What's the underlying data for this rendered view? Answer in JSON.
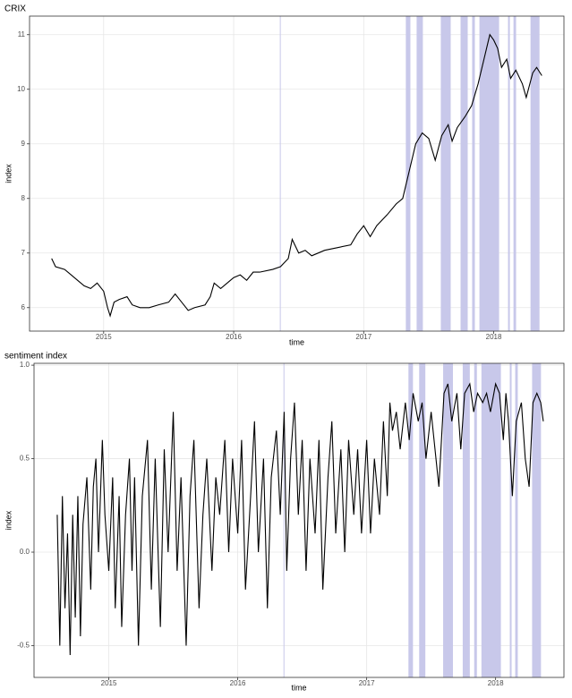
{
  "chart_data": [
    {
      "type": "line",
      "title": "CRIX",
      "x_label": "time",
      "y_label": "index",
      "xlim": [
        2014.43,
        2018.54
      ],
      "xticks": [
        2015,
        2016,
        2017,
        2018
      ],
      "ylim": [
        5.57,
        11.34
      ],
      "yticks": [
        6,
        7,
        8,
        9,
        10,
        11
      ],
      "grid": true,
      "highlight_color": "#c8c8ea",
      "highlight_periods": [
        [
          2016.355,
          2016.362
        ],
        [
          2017.324,
          2017.359
        ],
        [
          2017.407,
          2017.455
        ],
        [
          2017.593,
          2017.669
        ],
        [
          2017.745,
          2017.8
        ],
        [
          2017.834,
          2017.855
        ],
        [
          2017.89,
          2018.041
        ],
        [
          2018.11,
          2018.124
        ],
        [
          2018.152,
          2018.172
        ],
        [
          2018.283,
          2018.352
        ]
      ],
      "series": [
        {
          "color": "#000000",
          "x": [
            2014.6,
            2014.63,
            2014.7,
            2014.75,
            2014.8,
            2014.85,
            2014.9,
            2014.95,
            2015.0,
            2015.03,
            2015.05,
            2015.08,
            2015.12,
            2015.18,
            2015.22,
            2015.28,
            2015.35,
            2015.42,
            2015.5,
            2015.55,
            2015.6,
            2015.65,
            2015.7,
            2015.78,
            2015.82,
            2015.85,
            2015.9,
            2015.95,
            2016.0,
            2016.05,
            2016.1,
            2016.15,
            2016.2,
            2016.3,
            2016.36,
            2016.42,
            2016.45,
            2016.5,
            2016.55,
            2016.6,
            2016.7,
            2016.8,
            2016.9,
            2016.95,
            2017.0,
            2017.05,
            2017.1,
            2017.18,
            2017.25,
            2017.3,
            2017.35,
            2017.4,
            2017.45,
            2017.5,
            2017.55,
            2017.6,
            2017.65,
            2017.68,
            2017.72,
            2017.78,
            2017.83,
            2017.88,
            2017.93,
            2017.97,
            2018.0,
            2018.03,
            2018.06,
            2018.1,
            2018.13,
            2018.17,
            2018.22,
            2018.25,
            2018.3,
            2018.33,
            2018.37
          ],
          "values": [
            6.9,
            6.75,
            6.7,
            6.6,
            6.5,
            6.4,
            6.35,
            6.45,
            6.3,
            6.0,
            5.85,
            6.1,
            6.15,
            6.2,
            6.05,
            6.0,
            6.0,
            6.05,
            6.1,
            6.25,
            6.1,
            5.95,
            6.0,
            6.05,
            6.2,
            6.45,
            6.35,
            6.45,
            6.55,
            6.6,
            6.5,
            6.65,
            6.65,
            6.7,
            6.75,
            6.9,
            7.25,
            7.0,
            7.05,
            6.95,
            7.05,
            7.1,
            7.15,
            7.35,
            7.5,
            7.3,
            7.5,
            7.7,
            7.9,
            8.0,
            8.5,
            9.0,
            9.2,
            9.1,
            8.7,
            9.15,
            9.35,
            9.05,
            9.3,
            9.5,
            9.7,
            10.1,
            10.6,
            11.0,
            10.9,
            10.75,
            10.4,
            10.55,
            10.2,
            10.35,
            10.1,
            9.85,
            10.3,
            10.4,
            10.25
          ]
        }
      ]
    },
    {
      "type": "line",
      "title": "sentiment index",
      "x_label": "time",
      "y_label": "index",
      "xlim": [
        2014.42,
        2018.53
      ],
      "xticks": [
        2015,
        2016,
        2017,
        2018
      ],
      "ylim": [
        -0.67,
        1.01
      ],
      "yticks": [
        -0.5,
        {
          "value": 0,
          "label": "0.0"
        },
        0.5,
        {
          "value": 1,
          "label": "1.0"
        }
      ],
      "grid": true,
      "highlight_color": "#c8c8ea",
      "highlight_periods": [
        [
          2016.355,
          2016.362
        ],
        [
          2017.324,
          2017.359
        ],
        [
          2017.407,
          2017.455
        ],
        [
          2017.593,
          2017.669
        ],
        [
          2017.745,
          2017.8
        ],
        [
          2017.834,
          2017.855
        ],
        [
          2017.89,
          2018.041
        ],
        [
          2018.11,
          2018.124
        ],
        [
          2018.152,
          2018.172
        ],
        [
          2018.283,
          2018.352
        ]
      ],
      "series": [
        {
          "color": "#000000",
          "x": [
            2014.6,
            2014.62,
            2014.64,
            2014.66,
            2014.68,
            2014.7,
            2014.72,
            2014.74,
            2014.76,
            2014.78,
            2014.8,
            2014.83,
            2014.86,
            2014.88,
            2014.9,
            2014.92,
            2014.95,
            2014.97,
            2015.0,
            2015.03,
            2015.05,
            2015.08,
            2015.1,
            2015.13,
            2015.16,
            2015.18,
            2015.2,
            2015.23,
            2015.26,
            2015.3,
            2015.33,
            2015.36,
            2015.4,
            2015.43,
            2015.46,
            2015.5,
            2015.53,
            2015.56,
            2015.6,
            2015.63,
            2015.66,
            2015.7,
            2015.73,
            2015.76,
            2015.8,
            2015.83,
            2015.86,
            2015.9,
            2015.93,
            2015.96,
            2016.0,
            2016.03,
            2016.06,
            2016.1,
            2016.13,
            2016.16,
            2016.2,
            2016.23,
            2016.26,
            2016.3,
            2016.33,
            2016.36,
            2016.38,
            2016.41,
            2016.44,
            2016.47,
            2016.5,
            2016.53,
            2016.56,
            2016.6,
            2016.63,
            2016.66,
            2016.7,
            2016.73,
            2016.76,
            2016.8,
            2016.83,
            2016.86,
            2016.9,
            2016.93,
            2016.96,
            2017.0,
            2017.03,
            2017.06,
            2017.1,
            2017.13,
            2017.16,
            2017.18,
            2017.2,
            2017.23,
            2017.26,
            2017.3,
            2017.33,
            2017.36,
            2017.4,
            2017.43,
            2017.46,
            2017.5,
            2017.53,
            2017.56,
            2017.58,
            2017.6,
            2017.63,
            2017.66,
            2017.7,
            2017.73,
            2017.76,
            2017.8,
            2017.83,
            2017.86,
            2017.9,
            2017.93,
            2017.96,
            2018.0,
            2018.03,
            2018.06,
            2018.08,
            2018.1,
            2018.13,
            2018.16,
            2018.2,
            2018.23,
            2018.26,
            2018.29,
            2018.32,
            2018.35,
            2018.37
          ],
          "values": [
            0.2,
            -0.5,
            0.3,
            -0.3,
            0.1,
            -0.55,
            0.2,
            -0.35,
            0.3,
            -0.45,
            0.15,
            0.4,
            -0.2,
            0.35,
            0.5,
            0.0,
            0.6,
            0.2,
            -0.1,
            0.4,
            -0.3,
            0.3,
            -0.4,
            0.2,
            0.5,
            -0.1,
            0.4,
            -0.5,
            0.3,
            0.6,
            -0.2,
            0.5,
            -0.4,
            0.55,
            0.0,
            0.75,
            -0.1,
            0.4,
            -0.5,
            0.3,
            0.6,
            -0.3,
            0.2,
            0.5,
            -0.1,
            0.4,
            0.2,
            0.6,
            0.0,
            0.5,
            0.1,
            0.6,
            -0.2,
            0.3,
            0.7,
            0.0,
            0.5,
            -0.3,
            0.4,
            0.65,
            0.2,
            0.75,
            -0.1,
            0.5,
            0.8,
            0.2,
            0.6,
            -0.1,
            0.5,
            0.1,
            0.6,
            -0.2,
            0.4,
            0.7,
            0.1,
            0.55,
            0.0,
            0.6,
            0.2,
            0.55,
            0.1,
            0.6,
            0.1,
            0.5,
            0.2,
            0.7,
            0.3,
            0.8,
            0.65,
            0.75,
            0.55,
            0.8,
            0.6,
            0.85,
            0.7,
            0.8,
            0.5,
            0.75,
            0.55,
            0.35,
            0.6,
            0.85,
            0.9,
            0.7,
            0.85,
            0.55,
            0.85,
            0.9,
            0.75,
            0.85,
            0.8,
            0.85,
            0.75,
            0.9,
            0.85,
            0.6,
            0.85,
            0.7,
            0.3,
            0.7,
            0.8,
            0.5,
            0.35,
            0.8,
            0.85,
            0.8,
            0.7
          ]
        }
      ]
    }
  ]
}
